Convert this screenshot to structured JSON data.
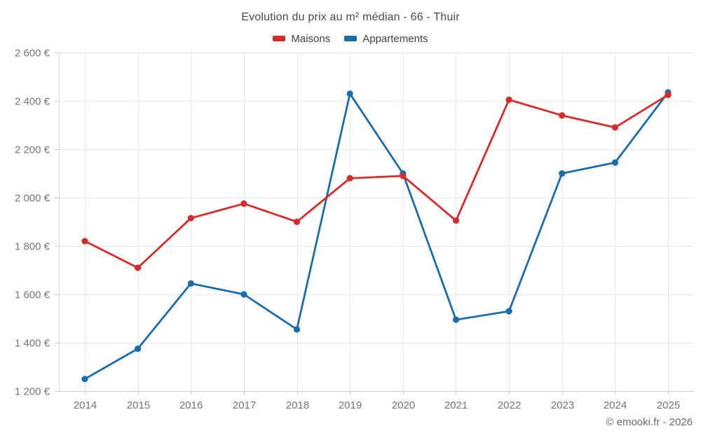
{
  "header": {
    "title": "Evolution du prix au m² médian - 66 - Thuir"
  },
  "legend": [
    {
      "label": "Maisons",
      "color": "#d62b2b"
    },
    {
      "label": "Appartements",
      "color": "#1a6da8"
    }
  ],
  "footer": {
    "credit": "© emooki.fr - 2026"
  },
  "chart_data": {
    "type": "line",
    "title": "Evolution du prix au m² médian - 66 - Thuir",
    "x": [
      "2014",
      "2015",
      "2016",
      "2017",
      "2018",
      "2019",
      "2020",
      "2021",
      "2022",
      "2023",
      "2024",
      "2025"
    ],
    "series": [
      {
        "name": "Maisons",
        "color": "#d62b2b",
        "values": [
          1820,
          1710,
          1915,
          1975,
          1900,
          2080,
          2090,
          1905,
          2405,
          2340,
          2290,
          2425
        ]
      },
      {
        "name": "Appartements",
        "color": "#1a6da8",
        "values": [
          1250,
          1375,
          1645,
          1600,
          1455,
          2430,
          2100,
          1495,
          1530,
          2100,
          2145,
          2435
        ]
      }
    ],
    "ylim": [
      1200,
      2600
    ],
    "yticks": [
      1200,
      1400,
      1600,
      1800,
      2000,
      2200,
      2400,
      2600
    ],
    "ytick_labels": [
      "1 200 €",
      "1 400 €",
      "1 600 €",
      "1 800 €",
      "2 000 €",
      "2 200 €",
      "2 400 €",
      "2 600 €"
    ],
    "y_unit": "€",
    "grid": true,
    "legend_position": "top"
  }
}
